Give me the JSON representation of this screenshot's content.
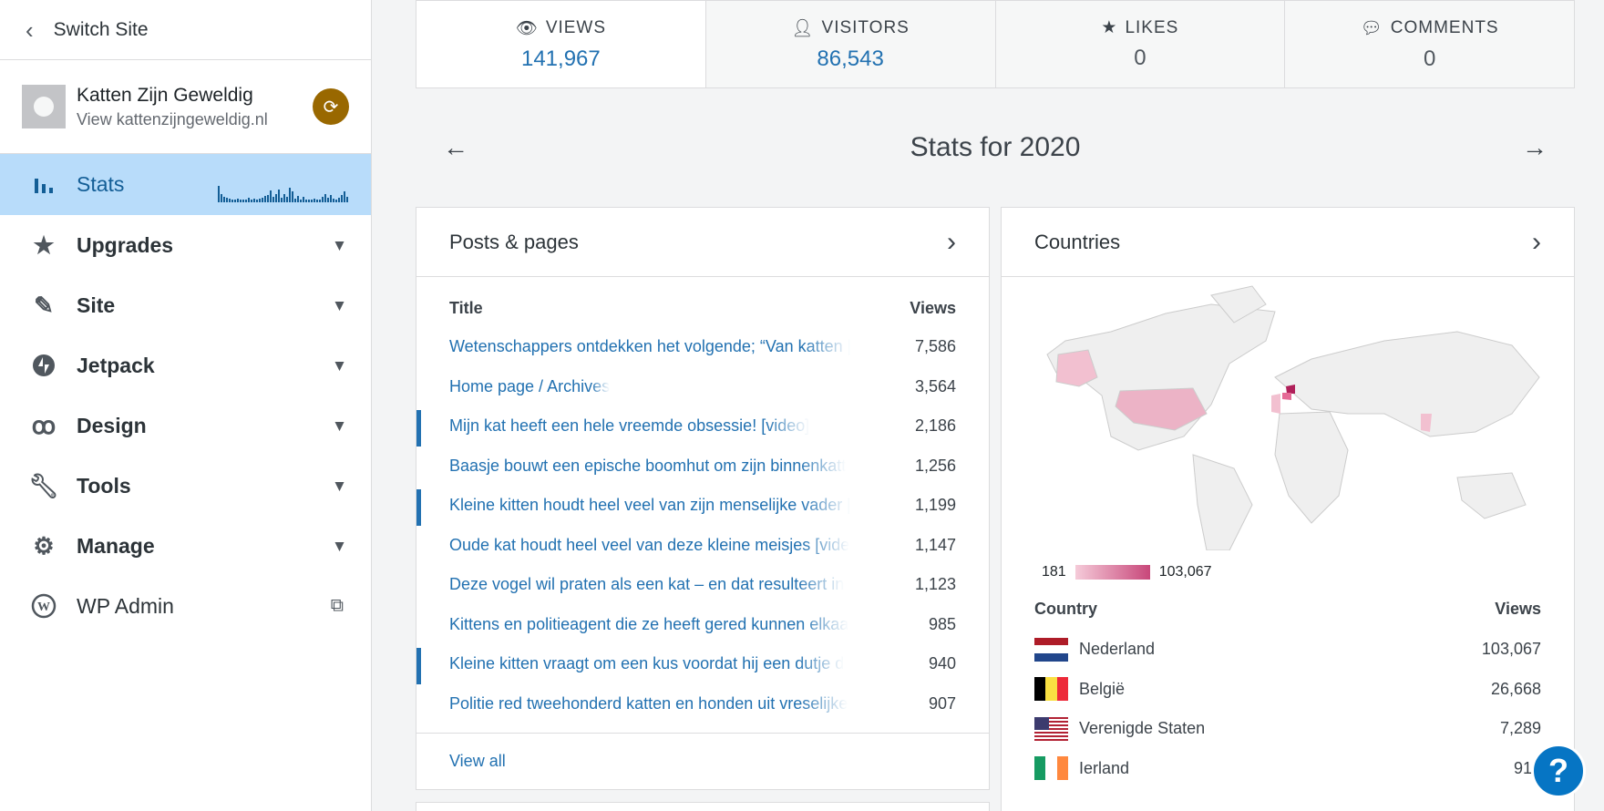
{
  "sidebar": {
    "switch_site": "Switch Site",
    "site_name": "Katten Zijn Geweldig",
    "site_url": "View kattenzijngeweldig.nl",
    "items": [
      {
        "label": "Stats",
        "icon": "bar-chart-icon"
      },
      {
        "label": "Upgrades",
        "icon": "star-icon"
      },
      {
        "label": "Site",
        "icon": "pencil-icon"
      },
      {
        "label": "Jetpack",
        "icon": "jetpack-icon"
      },
      {
        "label": "Design",
        "icon": "design-icon"
      },
      {
        "label": "Tools",
        "icon": "wrench-icon"
      },
      {
        "label": "Manage",
        "icon": "gear-icon"
      },
      {
        "label": "WP Admin",
        "icon": "wordpress-icon"
      }
    ]
  },
  "summary": {
    "views": {
      "label": "VIEWS",
      "value": "141,967"
    },
    "visitors": {
      "label": "VISITORS",
      "value": "86,543"
    },
    "likes": {
      "label": "LIKES",
      "value": "0"
    },
    "comments": {
      "label": "COMMENTS",
      "value": "0"
    }
  },
  "period": {
    "title": "Stats for 2020"
  },
  "posts": {
    "title": "Posts & pages",
    "col_title": "Title",
    "col_views": "Views",
    "rows": [
      {
        "title": "Wetenschappers ontdekken het volgende; “Van katten [",
        "views": "7,586"
      },
      {
        "title": "Home page / Archives",
        "views": "3,564"
      },
      {
        "title": "Mijn kat heeft een hele vreemde obsessie! [video]",
        "views": "2,186"
      },
      {
        "title": "Baasje bouwt een epische boomhut om zijn binnenkatt",
        "views": "1,256"
      },
      {
        "title": "Kleine kitten houdt heel veel van zijn menselijke vader [",
        "views": "1,199"
      },
      {
        "title": "Oude kat houdt heel veel van deze kleine meisjes [vide",
        "views": "1,147"
      },
      {
        "title": "Deze vogel wil praten als een kat – en dat resulteert in",
        "views": "1,123"
      },
      {
        "title": "Kittens en politieagent die ze heeft gered kunnen elkaa",
        "views": "985"
      },
      {
        "title": "Kleine kitten vraagt om een kus voordat hij een dutje d",
        "views": "940"
      },
      {
        "title": "Politie red tweehonderd katten en honden uit vreselijke",
        "views": "907"
      }
    ],
    "view_all": "View all"
  },
  "countries": {
    "title": "Countries",
    "legend_min": "181",
    "legend_max": "103,067",
    "col_country": "Country",
    "col_views": "Views",
    "rows": [
      {
        "name": "Nederland",
        "views": "103,067"
      },
      {
        "name": "België",
        "views": "26,668"
      },
      {
        "name": "Verenigde Staten",
        "views": "7,289"
      },
      {
        "name": "Ierland",
        "views": "919"
      }
    ]
  },
  "help": {
    "label": "?"
  },
  "colors": {
    "accent": "#2271b1",
    "active_bg": "#b8dcfa",
    "badge": "#996800",
    "help": "#0675c4"
  }
}
